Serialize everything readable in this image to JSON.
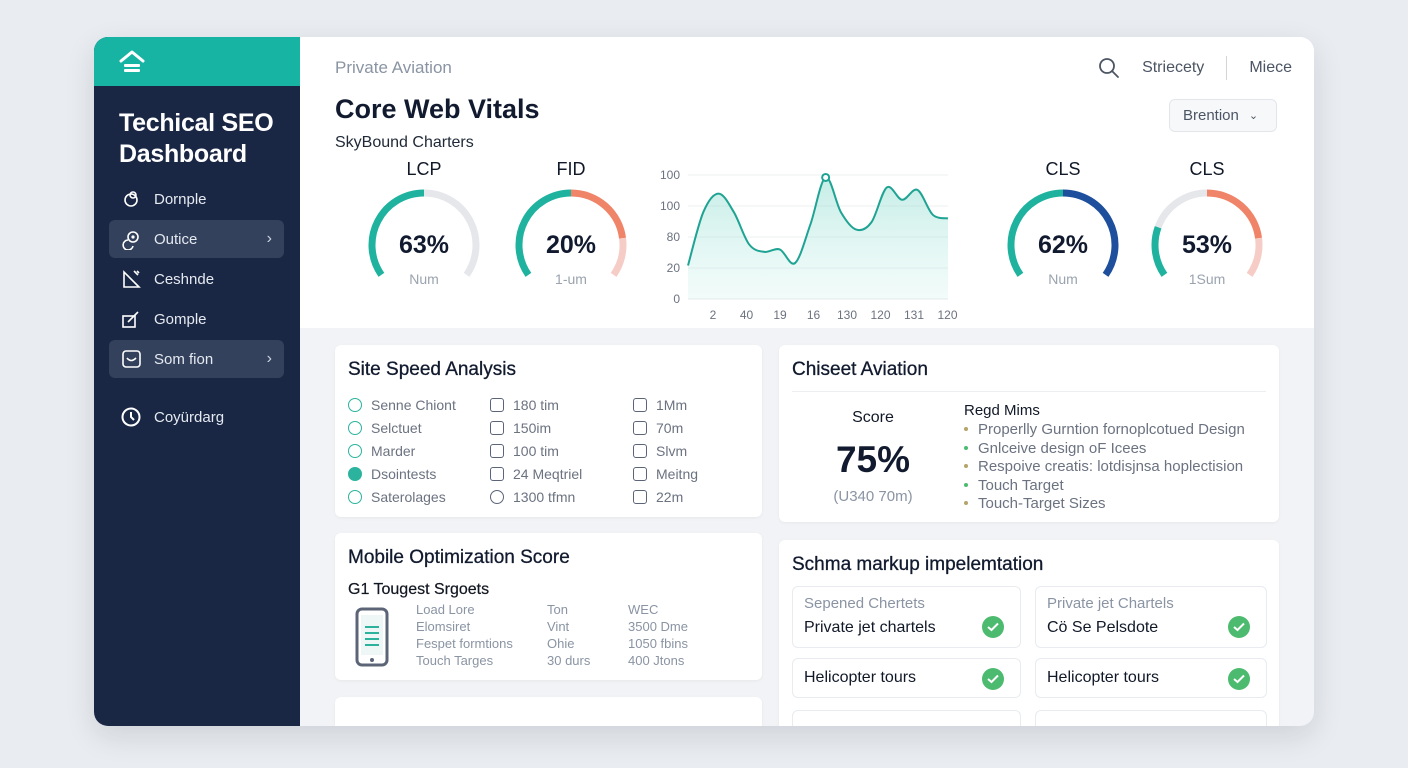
{
  "sidebar": {
    "title": "Techical SEO Dashboard",
    "items": [
      {
        "label": "Dornple",
        "icon": "mouse-icon",
        "active": false
      },
      {
        "label": "Outice",
        "icon": "pin-icon",
        "active": true
      },
      {
        "label": "Ceshnde",
        "icon": "edit-icon",
        "active": false
      },
      {
        "label": "Gomple",
        "icon": "edit-box-icon",
        "active": false
      },
      {
        "label": "Som fion",
        "icon": "screen-icon",
        "active": true
      },
      {
        "label": "Coyürdarg",
        "icon": "clock-icon",
        "active": false
      }
    ]
  },
  "header": {
    "breadcrumb": "Private Aviation",
    "title": "Core Web Vitals",
    "subtitle": "SkyBound Charters",
    "nav_1": "Striecety",
    "nav_2": "Miece",
    "dropdown": "Brention"
  },
  "gauges": [
    {
      "label": "LCP",
      "value": "63%",
      "sub": "Num",
      "segments": [
        {
          "f": 0.5,
          "c": "#1fb39f"
        },
        {
          "f": 0.5,
          "c": "#e5e7eb"
        }
      ]
    },
    {
      "label": "FID",
      "value": "20%",
      "sub": "1-um",
      "segments": [
        {
          "f": 0.5,
          "c": "#1fb39f"
        },
        {
          "f": 0.33,
          "c": "#f08468"
        },
        {
          "f": 0.17,
          "c": "#f6cdc6"
        }
      ]
    },
    {
      "label": "CLS",
      "value": "62%",
      "sub": "Num",
      "segments": [
        {
          "f": 0.5,
          "c": "#1fb39f"
        },
        {
          "f": 0.5,
          "c": "#1e4f9c"
        }
      ]
    },
    {
      "label": "CLS",
      "value": "53%",
      "sub": "1Sum",
      "segments": [
        {
          "f": 0.22,
          "c": "#1fb39f"
        },
        {
          "f": 0.28,
          "c": "#e5e7eb"
        },
        {
          "f": 0.33,
          "c": "#f08468"
        },
        {
          "f": 0.17,
          "c": "#f6cdc6"
        }
      ]
    }
  ],
  "chart_data": {
    "type": "area",
    "ytick_labels": [
      "100",
      "100",
      "80",
      "20",
      "0"
    ],
    "xtick_labels": [
      "2",
      "40",
      "19",
      "16",
      "130",
      "120",
      "131",
      "120"
    ],
    "ylim": [
      0,
      100
    ],
    "values": [
      27,
      70,
      85,
      70,
      44,
      38,
      40,
      29,
      60,
      98,
      70,
      56,
      62,
      90,
      80,
      88,
      68,
      65
    ],
    "color": "#1fa393",
    "highlight_index": 9
  },
  "speed": {
    "title": "Site Speed Analysis",
    "rows": [
      [
        "Senne Chiont",
        "180 tim",
        "1Mm"
      ],
      [
        "Selctuet",
        "150im",
        "70m"
      ],
      [
        "Marder",
        "100 tim",
        "Slvm"
      ],
      [
        "Dsointests",
        "24 Meqtriel",
        "Meitng"
      ],
      [
        "Saterolages",
        "1300 tfmn",
        "22m"
      ]
    ]
  },
  "chiseet": {
    "title": "Chiseet Aviation",
    "score_label": "Score",
    "score": "75%",
    "score_sub": "(U340 70m)",
    "list_title": "Regd Mims",
    "list": [
      "Properlly Gurntion fornoplcotued Design",
      "Gnlceive design oF Icees",
      "Respoive creatis: lotdisjnsa hoplectision",
      "Touch Target",
      "Touch-Target Sizes"
    ]
  },
  "mobile": {
    "title": "Mobile Optimization Score",
    "subtitle": "G1 Tougest Srgoets",
    "rows": [
      [
        "Load Lore",
        "Ton",
        "WEC"
      ],
      [
        "Elomsiret",
        "Vint",
        "3500 Dme"
      ],
      [
        "Fespet formtions",
        "Ohie",
        "1050 fbins"
      ],
      [
        "Touch Targes",
        "30 durs",
        "400 Jtons"
      ]
    ]
  },
  "schema": {
    "title": "Schma markup impelemtation",
    "items": [
      {
        "sub": "Sepened Chertets",
        "label": "Private jet chartels"
      },
      {
        "sub": "Private jet Chartels",
        "label": "Cö Se Pelsdote"
      },
      {
        "sub": "",
        "label": "Helicopter tours"
      },
      {
        "sub": "",
        "label": "Helicopter tours"
      }
    ]
  }
}
